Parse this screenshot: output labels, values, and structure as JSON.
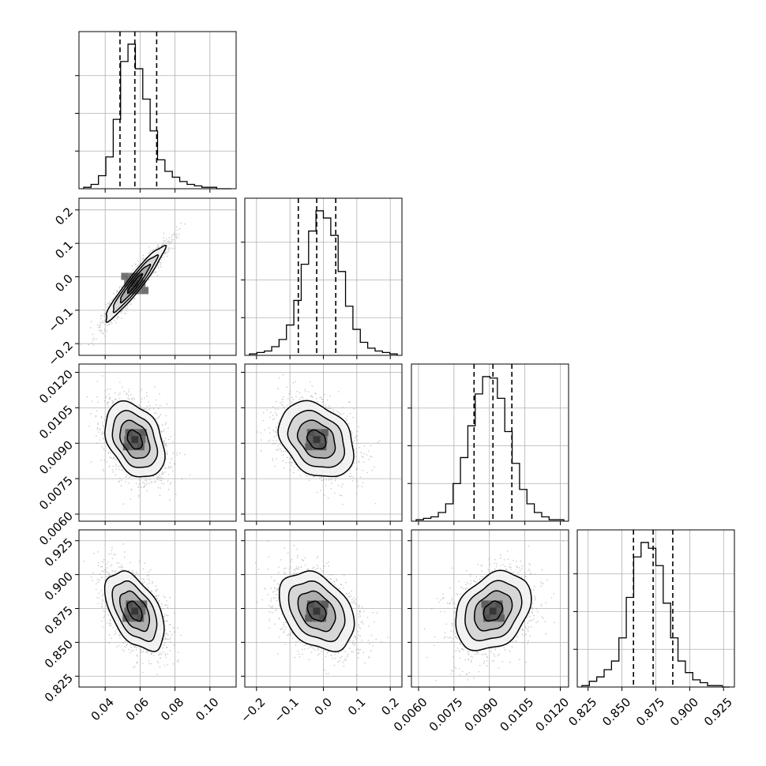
{
  "chart_data": {
    "type": "scatter",
    "title": "",
    "parameters": [
      {
        "range": [
          0.025,
          0.115
        ],
        "ticks": [
          "0.04",
          "0.06",
          "0.08",
          "0.10"
        ],
        "tick_values": [
          0.04,
          0.06,
          0.08,
          0.1
        ],
        "median": 0.057,
        "lo": 0.0485,
        "hi": 0.0695,
        "sigma": 0.0085
      },
      {
        "range": [
          -0.235,
          0.235
        ],
        "ticks": [
          "−0.2",
          "−0.1",
          "0.0",
          "0.1",
          "0.2"
        ],
        "tick_values": [
          -0.2,
          -0.1,
          0.0,
          0.1,
          0.2
        ],
        "median": -0.02,
        "lo": -0.075,
        "hi": 0.037,
        "sigma": 0.056
      },
      {
        "range": [
          0.0057,
          0.01235
        ],
        "ticks": [
          "0.0060",
          "0.0075",
          "0.0090",
          "0.0105",
          "0.0120"
        ],
        "tick_values": [
          0.006,
          0.0075,
          0.009,
          0.0105,
          0.012
        ],
        "median": 0.00915,
        "lo": 0.00835,
        "hi": 0.00995,
        "sigma": 0.0008
      },
      {
        "range": [
          0.817,
          0.933
        ],
        "ticks": [
          "0.825",
          "0.850",
          "0.875",
          "0.900",
          "0.925"
        ],
        "tick_values": [
          0.825,
          0.85,
          0.875,
          0.9,
          0.925
        ],
        "median": 0.873,
        "lo": 0.8585,
        "hi": 0.8875,
        "sigma": 0.0145
      }
    ],
    "correlations": {
      "1-0": 0.95,
      "2-0": -0.35,
      "2-1": -0.3,
      "3-0": -0.5,
      "3-1": -0.35,
      "3-2": 0.3
    },
    "histograms": [
      [
        1,
        3,
        9,
        22,
        48,
        88,
        100,
        83,
        62,
        40,
        20,
        12,
        8,
        5,
        3,
        2,
        1,
        1,
        0,
        0
      ],
      [
        1,
        2,
        3,
        6,
        11,
        21,
        38,
        63,
        86,
        100,
        95,
        83,
        58,
        34,
        18,
        9,
        5,
        3,
        2,
        1
      ],
      [
        1,
        2,
        3,
        6,
        12,
        26,
        44,
        66,
        88,
        100,
        99,
        85,
        62,
        40,
        22,
        12,
        6,
        3,
        1,
        1
      ],
      [
        1,
        4,
        7,
        12,
        18,
        34,
        62,
        90,
        100,
        96,
        84,
        58,
        34,
        18,
        10,
        5,
        3,
        1,
        1,
        0
      ]
    ],
    "contour_levels_sigma": [
      0.5,
      1.0,
      1.5,
      2.0
    ],
    "grid": true,
    "legend": "none"
  }
}
